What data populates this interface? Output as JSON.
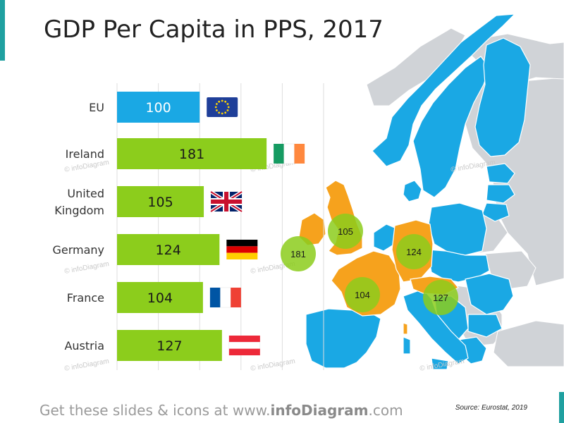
{
  "title": "GDP Per Capita in PPS, 2017",
  "footer": {
    "prefix": "Get these slides & icons at www.",
    "brand": "infoDiagram",
    "suffix": ".com"
  },
  "source": "Source: Eurostat, 2019",
  "watermark": "© infoDiagram",
  "colors": {
    "eu_bar": "#1aa8e4",
    "country_bar": "#8ccd1c",
    "map_eu": "#1aa8e4",
    "map_highlight": "#f6a21d",
    "map_other": "#d0d3d7",
    "bubble": "#8ccd1c",
    "accent": "#1fa0a0"
  },
  "chart_data": {
    "type": "bar",
    "orientation": "horizontal",
    "title": "GDP Per Capita in PPS, 2017",
    "categories": [
      "EU",
      "Ireland",
      "United Kingdom",
      "Germany",
      "France",
      "Austria"
    ],
    "values": [
      100,
      181,
      105,
      124,
      104,
      127
    ],
    "xlim": [
      0,
      250
    ],
    "grid": true,
    "flags": [
      "eu-flag-icon",
      "ireland-flag-icon",
      "uk-flag-icon",
      "germany-flag-icon",
      "france-flag-icon",
      "austria-flag-icon"
    ],
    "map_bubbles": [
      {
        "country": "Ireland",
        "value": 181
      },
      {
        "country": "United Kingdom",
        "value": 105
      },
      {
        "country": "Germany",
        "value": 124
      },
      {
        "country": "France",
        "value": 104
      },
      {
        "country": "Austria",
        "value": 127
      }
    ]
  }
}
